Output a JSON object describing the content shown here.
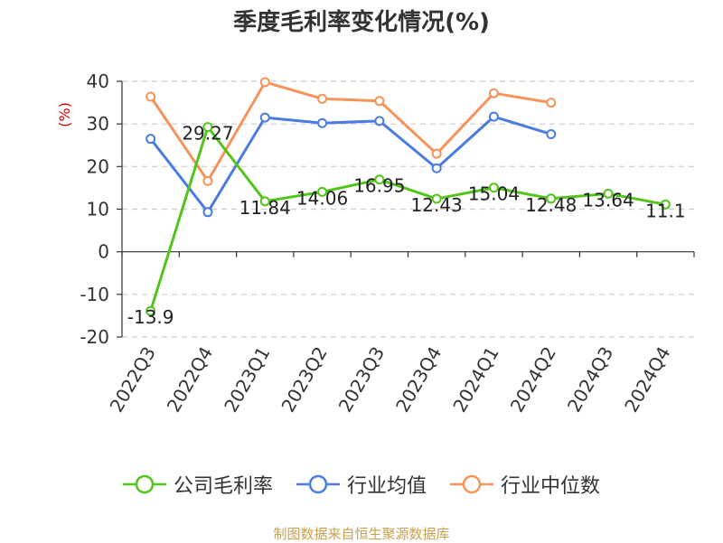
{
  "chart_data": {
    "type": "line",
    "title": "季度毛利率变化情况(%)",
    "ylabel": "(%)",
    "xlabel": "",
    "ylim": [
      -20,
      40
    ],
    "yticks": [
      -20,
      -10,
      0,
      10,
      20,
      30,
      40
    ],
    "categories": [
      "2022Q3",
      "2022Q4",
      "2023Q1",
      "2023Q2",
      "2023Q3",
      "2023Q4",
      "2024Q1",
      "2024Q2",
      "2024Q3",
      "2024Q4"
    ],
    "series": [
      {
        "name": "公司毛利率",
        "color": "#52c41a",
        "values": [
          -13.9,
          29.27,
          11.84,
          14.06,
          16.95,
          12.43,
          15.04,
          12.48,
          13.64,
          11.1
        ],
        "labels": [
          "-13.9",
          "29.27",
          "11.84",
          "14.06",
          "16.95",
          "12.43",
          "15.04",
          "12.48",
          "13.64",
          "11.1"
        ]
      },
      {
        "name": "行业均值",
        "color": "#4a7be0",
        "values": [
          26.5,
          9.3,
          31.5,
          30.2,
          30.7,
          19.6,
          31.7,
          27.6,
          null,
          null
        ]
      },
      {
        "name": "行业中位数",
        "color": "#f5935a",
        "values": [
          36.4,
          16.6,
          39.8,
          35.9,
          35.4,
          23.0,
          37.2,
          35.0,
          null,
          null
        ]
      }
    ],
    "grid": true,
    "legend": "bottom"
  },
  "source": "制图数据来自恒生聚源数据库"
}
